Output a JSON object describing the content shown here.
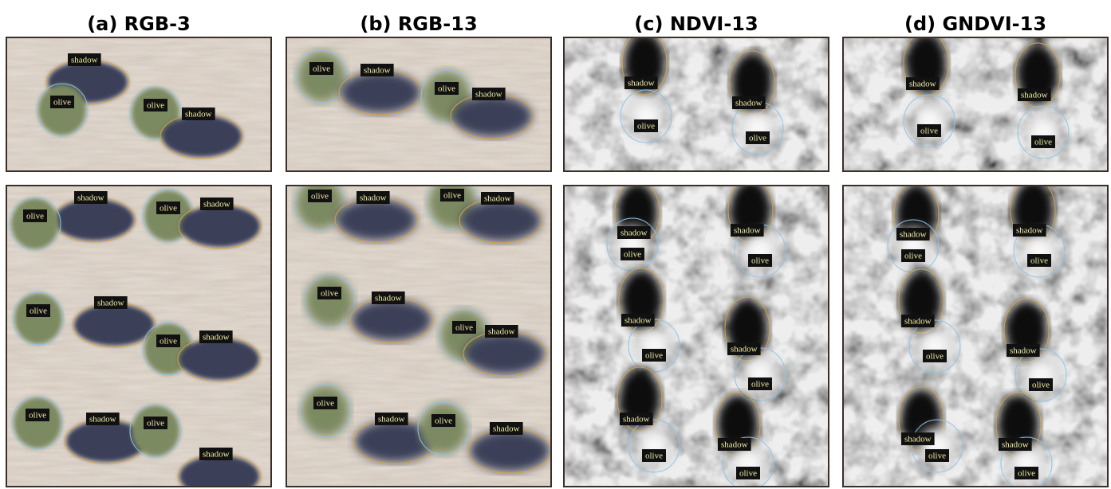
{
  "panels": [
    {
      "title": "(a) RGB-3",
      "top": [
        "shadow",
        "olive",
        "olive",
        "shadow"
      ],
      "bottom": [
        "shadow",
        "olive",
        "olive",
        "shadow",
        "shadow",
        "olive",
        "olive",
        "shadow",
        "olive",
        "shadow",
        "olive",
        "shadow"
      ]
    },
    {
      "title": "(b) RGB-13",
      "top": [
        "olive",
        "shadow",
        "olive",
        "shadow"
      ],
      "bottom": [
        "olive",
        "shadow",
        "olive",
        "shadow",
        "olive",
        "shadow",
        "olive",
        "shadow",
        "olive",
        "shadow",
        "olive",
        "shadow"
      ]
    },
    {
      "title": "(c) NDVI-13",
      "top": [
        "shadow",
        "shadow",
        "olive",
        "olive"
      ],
      "bottom": [
        "shadow",
        "olive",
        "shadow",
        "olive",
        "shadow",
        "olive",
        "shadow",
        "olive",
        "shadow",
        "olive",
        "shadow",
        "olive"
      ]
    },
    {
      "title": "(d) GNDVI-13",
      "top": [
        "shadow",
        "shadow",
        "olive",
        "olive"
      ],
      "bottom": [
        "shadow",
        "olive",
        "shadow",
        "olive",
        "shadow",
        "olive",
        "shadow",
        "olive",
        "shadow",
        "olive",
        "shadow",
        "olive"
      ]
    }
  ]
}
